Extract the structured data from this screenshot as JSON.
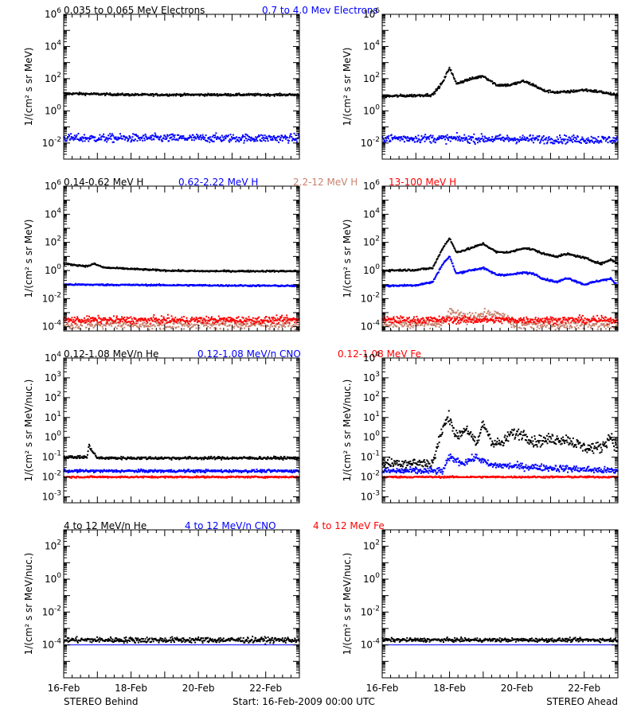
{
  "colors": {
    "black": "#000000",
    "blue": "#0000ff",
    "tan": "#c8826e",
    "red": "#ff0000"
  },
  "rows": [
    {
      "titles": [
        {
          "text": "0.035 to 0.065 MeV Electrons",
          "color": "black"
        },
        {
          "text": "0.7 to 4.0 Mev Electrons",
          "color": "blue"
        }
      ]
    },
    {
      "titles": [
        {
          "text": "0.14-0.62 MeV H",
          "color": "black"
        },
        {
          "text": "0.62-2.22 MeV H",
          "color": "blue"
        },
        {
          "text": "2.2-12 MeV H",
          "color": "tan"
        },
        {
          "text": "13-100 MeV H",
          "color": "red"
        }
      ]
    },
    {
      "titles": [
        {
          "text": "0.12-1.08 MeV/n He",
          "color": "black"
        },
        {
          "text": "0.12-1.08 MeV/n CNO",
          "color": "blue"
        },
        {
          "text": "0.12-1.08 MeV Fe",
          "color": "red"
        }
      ]
    },
    {
      "titles": [
        {
          "text": "4 to 12 MeV/n He",
          "color": "black"
        },
        {
          "text": "4 to 12 MeV/n CNO",
          "color": "blue"
        },
        {
          "text": "4 to 12 MeV Fe",
          "color": "red"
        }
      ]
    }
  ],
  "footer": {
    "left": "STEREO Behind",
    "center": "Start: 16-Feb-2009 00:00 UTC",
    "right": "STEREO Ahead"
  },
  "chart_data": [
    {
      "type": "scatter",
      "panel": "Electrons - STEREO Behind",
      "ylabel": "1/(cm² s sr MeV)",
      "yscale": "log",
      "ylim": [
        0.001,
        1000000
      ],
      "yticks": [
        "10^-2",
        "10^0",
        "10^2",
        "10^4",
        "10^6"
      ],
      "x_ticklabels": [
        "16-Feb",
        "18-Feb",
        "20-Feb",
        "22-Feb"
      ],
      "xlim_days": [
        0,
        7
      ],
      "series": [
        {
          "name": "0.035 to 0.065 MeV Electrons",
          "color": "black",
          "x": [
            0,
            1,
            2,
            3,
            4,
            5,
            6,
            7
          ],
          "y": [
            12,
            11,
            10,
            10,
            10,
            10,
            10,
            10
          ],
          "noise": 0.05
        },
        {
          "name": "0.7 to 4.0 Mev Electrons",
          "color": "blue",
          "x": [
            0,
            7
          ],
          "y": [
            0.02,
            0.02
          ],
          "noise": 0.18
        }
      ]
    },
    {
      "type": "scatter",
      "panel": "Electrons - STEREO Ahead",
      "ylabel": "1/(cm² s sr MeV)",
      "yscale": "log",
      "ylim": [
        0.001,
        1000000
      ],
      "yticks": [
        "10^-2",
        "10^0",
        "10^2",
        "10^4",
        "10^6"
      ],
      "x_ticklabels": [
        "16-Feb",
        "18-Feb",
        "20-Feb",
        "22-Feb"
      ],
      "xlim_days": [
        0,
        7
      ],
      "series": [
        {
          "name": "0.035 to 0.065 MeV Electrons",
          "color": "black",
          "x": [
            0,
            1,
            1.5,
            1.8,
            2.0,
            2.2,
            2.5,
            3.0,
            3.4,
            3.8,
            4.2,
            4.5,
            4.8,
            5.2,
            5.5,
            6.0,
            6.5,
            7
          ],
          "y": [
            8,
            9,
            10,
            60,
            500,
            50,
            80,
            150,
            40,
            40,
            70,
            40,
            18,
            14,
            15,
            20,
            15,
            9
          ],
          "noise": 0.06
        },
        {
          "name": "0.7 to 4.0 Mev Electrons",
          "color": "blue",
          "x": [
            0,
            7
          ],
          "y": [
            0.02,
            0.016
          ],
          "noise": 0.18
        }
      ]
    },
    {
      "type": "scatter",
      "panel": "H - STEREO Behind",
      "ylabel": "1/(cm² s sr MeV)",
      "yscale": "log",
      "ylim": [
        5e-05,
        1000000
      ],
      "yticks": [
        "10^-4",
        "10^-2",
        "10^0",
        "10^2",
        "10^4",
        "10^6"
      ],
      "x_ticklabels": [
        "16-Feb",
        "18-Feb",
        "20-Feb",
        "22-Feb"
      ],
      "xlim_days": [
        0,
        7
      ],
      "series": [
        {
          "name": "0.14-0.62 MeV H",
          "color": "black",
          "x": [
            0,
            0.7,
            0.9,
            1.2,
            2,
            3,
            4,
            5,
            6,
            7
          ],
          "y": [
            3,
            2,
            3,
            1.6,
            1.3,
            1,
            0.9,
            0.9,
            0.9,
            0.9
          ],
          "noise": 0.04
        },
        {
          "name": "0.62-2.22 MeV H",
          "color": "blue",
          "x": [
            0,
            7
          ],
          "y": [
            0.1,
            0.08
          ],
          "noise": 0.04
        },
        {
          "name": "2.2-12 MeV H",
          "color": "tan",
          "x": [
            0,
            7
          ],
          "y": [
            0.00015,
            0.00015
          ],
          "noise": 0.25
        },
        {
          "name": "13-100 MeV H",
          "color": "red",
          "x": [
            0,
            7
          ],
          "y": [
            0.0003,
            0.0003
          ],
          "noise": 0.18
        }
      ]
    },
    {
      "type": "scatter",
      "panel": "H - STEREO Ahead",
      "ylabel": "1/(cm² s sr MeV)",
      "yscale": "log",
      "ylim": [
        5e-05,
        1000000
      ],
      "yticks": [
        "10^-4",
        "10^-2",
        "10^0",
        "10^2",
        "10^4",
        "10^6"
      ],
      "x_ticklabels": [
        "16-Feb",
        "18-Feb",
        "20-Feb",
        "22-Feb"
      ],
      "xlim_days": [
        0,
        7
      ],
      "series": [
        {
          "name": "0.14-0.62 MeV H",
          "color": "black",
          "x": [
            0,
            1,
            1.5,
            1.8,
            2.0,
            2.2,
            2.5,
            3.0,
            3.4,
            3.8,
            4.2,
            4.5,
            4.8,
            5.2,
            5.5,
            6.0,
            6.5,
            6.8,
            7
          ],
          "y": [
            1,
            1.1,
            1.5,
            40,
            200,
            20,
            30,
            80,
            20,
            20,
            40,
            30,
            15,
            10,
            15,
            8,
            3,
            6,
            3
          ],
          "noise": 0.05
        },
        {
          "name": "0.62-2.22 MeV H",
          "color": "blue",
          "x": [
            0,
            1,
            1.5,
            1.8,
            2.0,
            2.2,
            2.5,
            3.0,
            3.4,
            3.8,
            4.2,
            4.5,
            4.8,
            5.2,
            5.5,
            6.0,
            6.5,
            6.8,
            7
          ],
          "y": [
            0.08,
            0.09,
            0.15,
            3,
            10,
            0.6,
            0.9,
            1.5,
            0.5,
            0.5,
            0.7,
            0.6,
            0.25,
            0.15,
            0.3,
            0.1,
            0.2,
            0.25,
            0.08
          ],
          "noise": 0.05
        },
        {
          "name": "2.2-12 MeV H",
          "color": "tan",
          "x": [
            0,
            1.8,
            2.0,
            2.5,
            2.9,
            3.2,
            3.6,
            3.9,
            7
          ],
          "y": [
            0.00015,
            0.00015,
            0.001,
            0.0004,
            0.0007,
            0.0007,
            0.0005,
            0.00015,
            0.00015
          ],
          "noise": 0.25
        },
        {
          "name": "13-100 MeV H",
          "color": "red",
          "x": [
            0,
            7
          ],
          "y": [
            0.0003,
            0.0003
          ],
          "noise": 0.18
        }
      ]
    },
    {
      "type": "scatter",
      "panel": "Heavy ions - STEREO Behind",
      "ylabel": "1/(cm² s sr MeV/nuc.)",
      "yscale": "log",
      "ylim": [
        0.0005,
        10000
      ],
      "yticks": [
        "10^-3",
        "10^-2",
        "10^-1",
        "10^0",
        "10^1",
        "10^2",
        "10^3",
        "10^4"
      ],
      "x_ticklabels": [
        "16-Feb",
        "18-Feb",
        "20-Feb",
        "22-Feb"
      ],
      "xlim_days": [
        0,
        7
      ],
      "series": [
        {
          "name": "0.12-1.08 MeV/n He",
          "color": "black",
          "x": [
            0,
            0.7,
            0.75,
            0.85,
            1.0,
            7
          ],
          "y": [
            0.1,
            0.1,
            0.4,
            0.2,
            0.09,
            0.09
          ],
          "noise": 0.05
        },
        {
          "name": "0.12-1.08 MeV/n CNO",
          "color": "blue",
          "x": [
            0,
            7
          ],
          "y": [
            0.02,
            0.02
          ],
          "noise": 0.05
        },
        {
          "name": "0.12-1.08 MeV Fe",
          "color": "red",
          "x": [
            0,
            7
          ],
          "y": [
            0.01,
            0.01
          ],
          "noise": 0.03
        }
      ]
    },
    {
      "type": "scatter",
      "panel": "Heavy ions - STEREO Ahead",
      "ylabel": "1/(cm² s sr MeV/nuc.)",
      "yscale": "log",
      "ylim": [
        0.0005,
        10000
      ],
      "yticks": [
        "10^-3",
        "10^-2",
        "10^-1",
        "10^0",
        "10^1",
        "10^2",
        "10^3",
        "10^4"
      ],
      "x_ticklabels": [
        "16-Feb",
        "18-Feb",
        "20-Feb",
        "22-Feb"
      ],
      "xlim_days": [
        0,
        7
      ],
      "series": [
        {
          "name": "0.12-1.08 MeV/n He",
          "color": "black",
          "x": [
            0,
            1.5,
            1.8,
            2.0,
            2.2,
            2.5,
            2.8,
            3.0,
            3.3,
            3.6,
            3.8,
            4.2,
            4.5,
            5.0,
            5.5,
            6.0,
            6.5,
            6.8,
            7
          ],
          "y": [
            0.05,
            0.05,
            3,
            12,
            1,
            3,
            0.4,
            5,
            0.5,
            0.5,
            1.5,
            1.5,
            0.6,
            0.8,
            0.8,
            0.3,
            0.3,
            1.2,
            0.2
          ],
          "noise": 0.2
        },
        {
          "name": "0.12-1.08 MeV/n CNO",
          "color": "blue",
          "x": [
            0,
            1.8,
            2.0,
            2.4,
            2.8,
            3.2,
            7
          ],
          "y": [
            0.02,
            0.02,
            0.1,
            0.05,
            0.1,
            0.04,
            0.02
          ],
          "noise": 0.12
        },
        {
          "name": "0.12-1.08 MeV Fe",
          "color": "red",
          "x": [
            0,
            7
          ],
          "y": [
            0.01,
            0.01
          ],
          "noise": 0.03
        }
      ]
    },
    {
      "type": "scatter",
      "panel": "4-12 MeV/n - STEREO Behind",
      "ylabel": "1/(cm² s sr MeV/nuc.)",
      "yscale": "log",
      "ylim": [
        1e-06,
        1000
      ],
      "yticks": [
        "10^-4",
        "10^-2",
        "10^0",
        "10^2"
      ],
      "x_ticklabels": [
        "16-Feb",
        "18-Feb",
        "20-Feb",
        "22-Feb"
      ],
      "xlim_days": [
        0,
        7
      ],
      "series": [
        {
          "name": "4 to 12 MeV/n He",
          "color": "black",
          "x": [
            0,
            7
          ],
          "y": [
            0.0002,
            0.0002
          ],
          "noise": 0.12
        },
        {
          "name": "4 to 12 MeV/n CNO",
          "color": "blue",
          "x": [
            0,
            7
          ],
          "y": [
            0.0001,
            0.0001
          ],
          "noise": 0.0
        }
      ]
    },
    {
      "type": "scatter",
      "panel": "4-12 MeV/n - STEREO Ahead",
      "ylabel": "1/(cm² s sr MeV/nuc.)",
      "yscale": "log",
      "ylim": [
        1e-06,
        1000
      ],
      "yticks": [
        "10^-4",
        "10^-2",
        "10^0",
        "10^2"
      ],
      "x_ticklabels": [
        "16-Feb",
        "18-Feb",
        "20-Feb",
        "22-Feb"
      ],
      "xlim_days": [
        0,
        7
      ],
      "series": [
        {
          "name": "4 to 12 MeV/n He",
          "color": "black",
          "x": [
            0,
            7
          ],
          "y": [
            0.0002,
            0.0002
          ],
          "noise": 0.08
        },
        {
          "name": "4 to 12 MeV/n CNO",
          "color": "blue",
          "x": [
            0,
            7
          ],
          "y": [
            0.0001,
            0.0001
          ],
          "noise": 0.0
        }
      ]
    }
  ]
}
